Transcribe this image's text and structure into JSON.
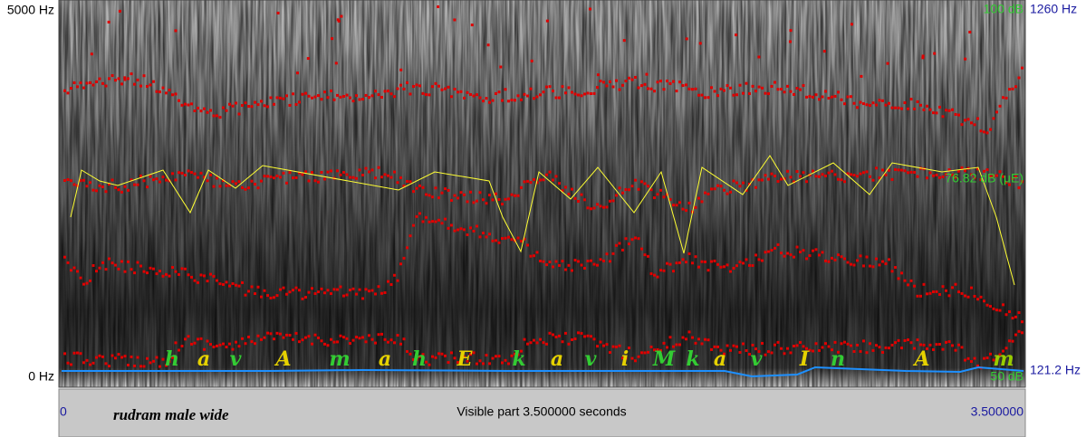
{
  "axis": {
    "top_left": "5000 Hz",
    "bottom_left": "0 Hz",
    "top_right_db": "100 dB",
    "top_right_hz": "1260 Hz",
    "mid_right_db": "76.82 dB (μE)",
    "bottom_right_db": "50 dB",
    "bottom_right_hz": "121.2 Hz"
  },
  "transcription": [
    {
      "text": "h",
      "color": "#33cc33"
    },
    {
      "text": "a",
      "color": "#e6d200"
    },
    {
      "text": "v",
      "color": "#33cc33"
    },
    {
      "text": "A",
      "color": "#e6d200"
    },
    {
      "text": "m",
      "color": "#33cc33"
    },
    {
      "text": "a",
      "color": "#e6d200"
    },
    {
      "text": "h",
      "color": "#33cc33"
    },
    {
      "text": "E",
      "color": "#e6d200"
    },
    {
      "text": "k",
      "color": "#33cc33"
    },
    {
      "text": "a",
      "color": "#e6d200"
    },
    {
      "text": "v",
      "color": "#33cc33"
    },
    {
      "text": "i",
      "color": "#e6d200"
    },
    {
      "text": "M",
      "color": "#33cc33"
    },
    {
      "text": "k",
      "color": "#33cc33"
    },
    {
      "text": "a",
      "color": "#e6d200"
    },
    {
      "text": "v",
      "color": "#33cc33"
    },
    {
      "text": "I",
      "color": "#e6d200"
    },
    {
      "text": "n",
      "color": "#33cc33"
    },
    {
      "text": "A",
      "color": "#e6d200"
    },
    {
      "text": "m",
      "color": "#99cc00"
    }
  ],
  "footer": {
    "start": "0",
    "name": "rudram male wide",
    "visible": "Visible part 3.500000 seconds",
    "end": "3.500000"
  }
}
